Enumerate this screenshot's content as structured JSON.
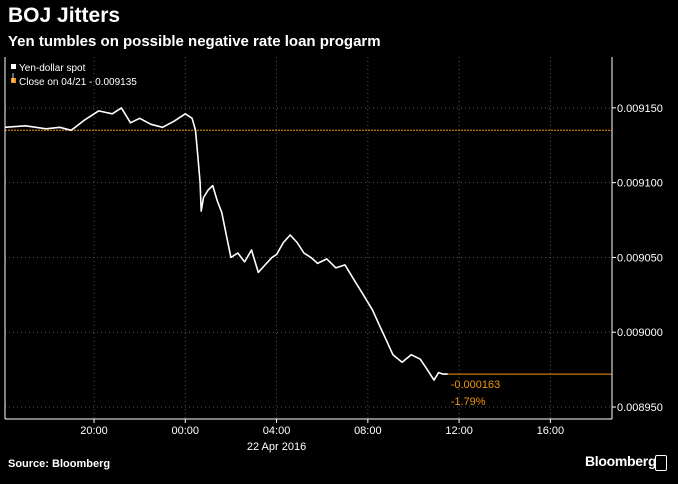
{
  "header": {
    "title": "BOJ Jitters",
    "subtitle": "Yen tumbles on possible negative rate loan progarm"
  },
  "footer": {
    "source": "Source: Bloomberg",
    "brand": "Bloomberg"
  },
  "colors": {
    "background": "#000000",
    "series": "#ffffff",
    "reference": "#f0960f",
    "grid": "#555555",
    "axis": "#ffffff"
  },
  "chart_data": {
    "type": "line",
    "title": "BOJ Jitters",
    "subtitle": "Yen tumbles on possible negative rate loan progarm",
    "xlabel": "",
    "ylabel": "",
    "x_date_label": "22 Apr 2016",
    "x_ticks": [
      "20:00",
      "00:00",
      "04:00",
      "08:00",
      "12:00",
      "16:00"
    ],
    "x_tick_hours": [
      20,
      24,
      28,
      32,
      36,
      40
    ],
    "xlim_hours": [
      16.1,
      42.7
    ],
    "y_ticks": [
      "0.009150",
      "0.009100",
      "0.009050",
      "0.009000",
      "0.008950"
    ],
    "ylim": [
      0.008942,
      0.009184
    ],
    "y_axis_side": "right",
    "grid": true,
    "legend": {
      "placement": "top-left",
      "entries": [
        {
          "label": "Yen-dollar spot",
          "color": "#ffffff"
        },
        {
          "label": "Close on 04/21 - 0.009135",
          "color": "#f0960f"
        }
      ]
    },
    "reference_line": {
      "label": "Close on 04/21",
      "value": 0.009135
    },
    "last_value_line": {
      "value": 0.008972
    },
    "annotations": [
      "-0.000163",
      "-1.79%"
    ],
    "series": [
      {
        "name": "Yen-dollar spot",
        "x": [
          16.1,
          17.0,
          17.9,
          18.5,
          19.0,
          19.6,
          20.2,
          20.8,
          21.2,
          21.6,
          22.0,
          22.5,
          23.0,
          23.5,
          24.0,
          24.3,
          24.45,
          24.55,
          24.65,
          24.7,
          24.8,
          25.0,
          25.2,
          25.4,
          25.6,
          25.8,
          26.0,
          26.3,
          26.6,
          26.9,
          27.2,
          27.5,
          27.8,
          28.0,
          28.3,
          28.6,
          28.9,
          29.2,
          29.5,
          29.8,
          30.2,
          30.6,
          31.0,
          31.4,
          31.8,
          32.2,
          32.5,
          32.8,
          33.1,
          33.5,
          33.9,
          34.3,
          34.6,
          34.9,
          35.1,
          35.3,
          35.5
        ],
        "y": [
          0.009137,
          0.009138,
          0.009136,
          0.009137,
          0.009135,
          0.009142,
          0.009148,
          0.009146,
          0.00915,
          0.00914,
          0.009143,
          0.009139,
          0.009137,
          0.009141,
          0.009146,
          0.009143,
          0.009135,
          0.009118,
          0.0091,
          0.009081,
          0.00909,
          0.009095,
          0.009098,
          0.009088,
          0.00908,
          0.009065,
          0.00905,
          0.009053,
          0.009047,
          0.009055,
          0.00904,
          0.009045,
          0.00905,
          0.009052,
          0.00906,
          0.009065,
          0.00906,
          0.009053,
          0.00905,
          0.009046,
          0.009049,
          0.009043,
          0.009045,
          0.009035,
          0.009025,
          0.009015,
          0.009005,
          0.008995,
          0.008985,
          0.00898,
          0.008985,
          0.008982,
          0.008975,
          0.008968,
          0.008973,
          0.008972,
          0.008972
        ]
      }
    ]
  }
}
